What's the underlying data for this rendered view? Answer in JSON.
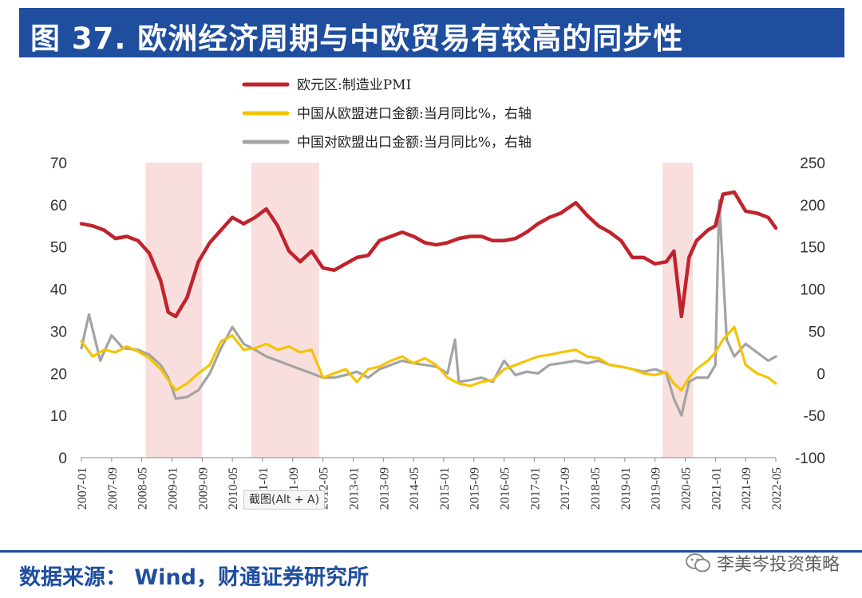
{
  "title": "图  37. 欧洲经济周期与中欧贸易有较高的同步性",
  "source": "数据来源：   Wind，财通证券研究所",
  "watermark": "李美岑投资策略",
  "screenshot_tip": "截图(Alt + A)",
  "chart_data": {
    "type": "line",
    "legend": [
      {
        "name": "欧元区:制造业PMI",
        "color": "#c0232c",
        "axis": "left"
      },
      {
        "name": "中国从欧盟进口金额:当月同比%，右轴",
        "color": "#f5c400",
        "axis": "right"
      },
      {
        "name": "中国对欧盟出口金额:当月同比%，右轴",
        "color": "#a3a3a3",
        "axis": "right"
      }
    ],
    "x_ticks": [
      "2007-01",
      "2007-09",
      "2008-05",
      "2009-01",
      "2009-09",
      "2010-05",
      "2011-01",
      "2011-09",
      "2012-05",
      "2013-01",
      "2013-09",
      "2014-05",
      "2015-01",
      "2015-09",
      "2016-05",
      "2017-01",
      "2017-09",
      "2018-05",
      "2019-01",
      "2019-09",
      "2020-05",
      "2021-01",
      "2021-09",
      "2022-05"
    ],
    "y_left": {
      "min": 0,
      "max": 70,
      "ticks": [
        0,
        10,
        20,
        30,
        40,
        50,
        60,
        70
      ]
    },
    "y_right": {
      "min": -100,
      "max": 250,
      "ticks": [
        -100,
        -50,
        0,
        50,
        100,
        150,
        200,
        250
      ]
    },
    "shaded_periods": [
      [
        "2008-06",
        "2009-09"
      ],
      [
        "2010-10",
        "2012-04"
      ],
      [
        "2019-11",
        "2020-07"
      ]
    ],
    "series": [
      {
        "name": "欧元区:制造业PMI",
        "axis": "left",
        "points": [
          [
            "2007-01",
            55.5
          ],
          [
            "2007-04",
            55.0
          ],
          [
            "2007-07",
            54.0
          ],
          [
            "2007-10",
            52.0
          ],
          [
            "2008-01",
            52.5
          ],
          [
            "2008-04",
            51.5
          ],
          [
            "2008-07",
            48.5
          ],
          [
            "2008-10",
            42.0
          ],
          [
            "2008-12",
            34.5
          ],
          [
            "2009-02",
            33.5
          ],
          [
            "2009-05",
            38.0
          ],
          [
            "2009-08",
            46.5
          ],
          [
            "2009-11",
            51.0
          ],
          [
            "2010-02",
            54.0
          ],
          [
            "2010-05",
            57.0
          ],
          [
            "2010-08",
            55.5
          ],
          [
            "2010-11",
            57.0
          ],
          [
            "2011-02",
            59.0
          ],
          [
            "2011-05",
            55.0
          ],
          [
            "2011-08",
            49.0
          ],
          [
            "2011-11",
            46.5
          ],
          [
            "2012-02",
            49.0
          ],
          [
            "2012-05",
            45.0
          ],
          [
            "2012-08",
            44.5
          ],
          [
            "2012-11",
            46.0
          ],
          [
            "2013-02",
            47.5
          ],
          [
            "2013-05",
            48.0
          ],
          [
            "2013-08",
            51.5
          ],
          [
            "2013-11",
            52.5
          ],
          [
            "2014-02",
            53.5
          ],
          [
            "2014-05",
            52.5
          ],
          [
            "2014-08",
            51.0
          ],
          [
            "2014-11",
            50.5
          ],
          [
            "2015-02",
            51.0
          ],
          [
            "2015-05",
            52.0
          ],
          [
            "2015-08",
            52.5
          ],
          [
            "2015-11",
            52.5
          ],
          [
            "2016-02",
            51.5
          ],
          [
            "2016-05",
            51.5
          ],
          [
            "2016-08",
            52.0
          ],
          [
            "2016-11",
            53.5
          ],
          [
            "2017-02",
            55.5
          ],
          [
            "2017-05",
            57.0
          ],
          [
            "2017-08",
            58.0
          ],
          [
            "2017-12",
            60.5
          ],
          [
            "2018-03",
            57.5
          ],
          [
            "2018-06",
            55.0
          ],
          [
            "2018-09",
            53.5
          ],
          [
            "2018-12",
            51.5
          ],
          [
            "2019-03",
            47.5
          ],
          [
            "2019-06",
            47.5
          ],
          [
            "2019-09",
            46.0
          ],
          [
            "2019-12",
            46.5
          ],
          [
            "2020-02",
            49.0
          ],
          [
            "2020-04",
            33.5
          ],
          [
            "2020-06",
            47.5
          ],
          [
            "2020-08",
            51.5
          ],
          [
            "2020-11",
            54.0
          ],
          [
            "2021-01",
            55.0
          ],
          [
            "2021-03",
            62.5
          ],
          [
            "2021-06",
            63.0
          ],
          [
            "2021-09",
            58.5
          ],
          [
            "2021-12",
            58.0
          ],
          [
            "2022-03",
            57.0
          ],
          [
            "2022-05",
            54.5
          ]
        ]
      },
      {
        "name": "中国从欧盟进口金额:当月同比%，右轴",
        "axis": "right",
        "points": [
          [
            "2007-01",
            38
          ],
          [
            "2007-04",
            20
          ],
          [
            "2007-07",
            28
          ],
          [
            "2007-10",
            25
          ],
          [
            "2008-01",
            32
          ],
          [
            "2008-04",
            26
          ],
          [
            "2008-07",
            18
          ],
          [
            "2008-10",
            5
          ],
          [
            "2008-12",
            -8
          ],
          [
            "2009-02",
            -20
          ],
          [
            "2009-05",
            -12
          ],
          [
            "2009-08",
            0
          ],
          [
            "2009-11",
            10
          ],
          [
            "2010-02",
            38
          ],
          [
            "2010-05",
            45
          ],
          [
            "2010-08",
            28
          ],
          [
            "2010-11",
            30
          ],
          [
            "2011-02",
            35
          ],
          [
            "2011-05",
            28
          ],
          [
            "2011-08",
            32
          ],
          [
            "2011-11",
            25
          ],
          [
            "2012-02",
            28
          ],
          [
            "2012-05",
            -5
          ],
          [
            "2012-08",
            0
          ],
          [
            "2012-11",
            5
          ],
          [
            "2013-02",
            -10
          ],
          [
            "2013-05",
            5
          ],
          [
            "2013-08",
            8
          ],
          [
            "2013-11",
            15
          ],
          [
            "2014-02",
            20
          ],
          [
            "2014-05",
            12
          ],
          [
            "2014-08",
            18
          ],
          [
            "2014-11",
            10
          ],
          [
            "2015-02",
            -5
          ],
          [
            "2015-05",
            -12
          ],
          [
            "2015-08",
            -15
          ],
          [
            "2015-11",
            -10
          ],
          [
            "2016-02",
            -8
          ],
          [
            "2016-05",
            5
          ],
          [
            "2016-08",
            10
          ],
          [
            "2016-11",
            15
          ],
          [
            "2017-02",
            20
          ],
          [
            "2017-05",
            22
          ],
          [
            "2017-08",
            25
          ],
          [
            "2017-12",
            28
          ],
          [
            "2018-03",
            20
          ],
          [
            "2018-06",
            18
          ],
          [
            "2018-09",
            10
          ],
          [
            "2018-12",
            8
          ],
          [
            "2019-03",
            5
          ],
          [
            "2019-06",
            0
          ],
          [
            "2019-09",
            -2
          ],
          [
            "2019-12",
            2
          ],
          [
            "2020-02",
            -12
          ],
          [
            "2020-04",
            -20
          ],
          [
            "2020-06",
            -5
          ],
          [
            "2020-08",
            5
          ],
          [
            "2020-11",
            15
          ],
          [
            "2021-01",
            25
          ],
          [
            "2021-03",
            40
          ],
          [
            "2021-06",
            55
          ],
          [
            "2021-09",
            10
          ],
          [
            "2021-12",
            0
          ],
          [
            "2022-03",
            -5
          ],
          [
            "2022-05",
            -12
          ]
        ]
      },
      {
        "name": "中国对欧盟出口金额:当月同比%，右轴",
        "axis": "right",
        "points": [
          [
            "2007-01",
            30
          ],
          [
            "2007-03",
            70
          ],
          [
            "2007-06",
            15
          ],
          [
            "2007-09",
            45
          ],
          [
            "2007-12",
            30
          ],
          [
            "2008-04",
            28
          ],
          [
            "2008-07",
            22
          ],
          [
            "2008-10",
            10
          ],
          [
            "2008-12",
            -5
          ],
          [
            "2009-02",
            -30
          ],
          [
            "2009-05",
            -28
          ],
          [
            "2009-08",
            -20
          ],
          [
            "2009-11",
            0
          ],
          [
            "2010-02",
            30
          ],
          [
            "2010-05",
            55
          ],
          [
            "2010-08",
            35
          ],
          [
            "2010-11",
            28
          ],
          [
            "2011-02",
            20
          ],
          [
            "2011-05",
            15
          ],
          [
            "2011-08",
            10
          ],
          [
            "2011-11",
            5
          ],
          [
            "2012-02",
            0
          ],
          [
            "2012-05",
            -5
          ],
          [
            "2012-08",
            -5
          ],
          [
            "2012-11",
            -2
          ],
          [
            "2013-02",
            2
          ],
          [
            "2013-05",
            -5
          ],
          [
            "2013-08",
            5
          ],
          [
            "2013-11",
            10
          ],
          [
            "2014-02",
            15
          ],
          [
            "2014-05",
            12
          ],
          [
            "2014-08",
            10
          ],
          [
            "2014-11",
            8
          ],
          [
            "2015-02",
            0
          ],
          [
            "2015-04",
            40
          ],
          [
            "2015-05",
            -10
          ],
          [
            "2015-08",
            -8
          ],
          [
            "2015-11",
            -5
          ],
          [
            "2016-02",
            -10
          ],
          [
            "2016-05",
            15
          ],
          [
            "2016-08",
            -2
          ],
          [
            "2016-11",
            2
          ],
          [
            "2017-02",
            0
          ],
          [
            "2017-05",
            10
          ],
          [
            "2017-08",
            12
          ],
          [
            "2017-12",
            15
          ],
          [
            "2018-03",
            12
          ],
          [
            "2018-06",
            15
          ],
          [
            "2018-09",
            10
          ],
          [
            "2018-12",
            8
          ],
          [
            "2019-03",
            5
          ],
          [
            "2019-06",
            2
          ],
          [
            "2019-09",
            5
          ],
          [
            "2019-12",
            0
          ],
          [
            "2020-02",
            -30
          ],
          [
            "2020-04",
            -50
          ],
          [
            "2020-06",
            -10
          ],
          [
            "2020-08",
            -5
          ],
          [
            "2020-11",
            -5
          ],
          [
            "2021-01",
            10
          ],
          [
            "2021-02",
            205
          ],
          [
            "2021-04",
            40
          ],
          [
            "2021-06",
            20
          ],
          [
            "2021-09",
            35
          ],
          [
            "2021-12",
            25
          ],
          [
            "2022-03",
            15
          ],
          [
            "2022-05",
            20
          ]
        ]
      }
    ]
  }
}
